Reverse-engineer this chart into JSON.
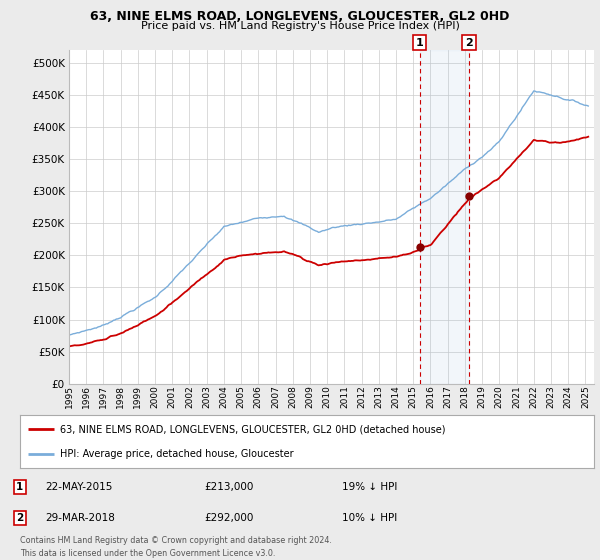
{
  "title": "63, NINE ELMS ROAD, LONGLEVENS, GLOUCESTER, GL2 0HD",
  "subtitle": "Price paid vs. HM Land Registry's House Price Index (HPI)",
  "hpi_label": "HPI: Average price, detached house, Gloucester",
  "property_label": "63, NINE ELMS ROAD, LONGLEVENS, GLOUCESTER, GL2 0HD (detached house)",
  "sale1_date": "22-MAY-2015",
  "sale1_price": 213000,
  "sale1_note": "19% ↓ HPI",
  "sale2_date": "29-MAR-2018",
  "sale2_price": 292000,
  "sale2_note": "10% ↓ HPI",
  "sale1_x": 2015.38,
  "sale2_x": 2018.24,
  "ylim": [
    0,
    520000
  ],
  "xlim_start": 1995.0,
  "xlim_end": 2025.5,
  "yticks": [
    0,
    50000,
    100000,
    150000,
    200000,
    250000,
    300000,
    350000,
    400000,
    450000,
    500000
  ],
  "background_color": "#ebebeb",
  "plot_bg_color": "#ffffff",
  "hpi_color": "#7aadda",
  "property_color": "#cc0000",
  "grid_color": "#cccccc",
  "footer_text": "Contains HM Land Registry data © Crown copyright and database right 2024.\nThis data is licensed under the Open Government Licence v3.0."
}
